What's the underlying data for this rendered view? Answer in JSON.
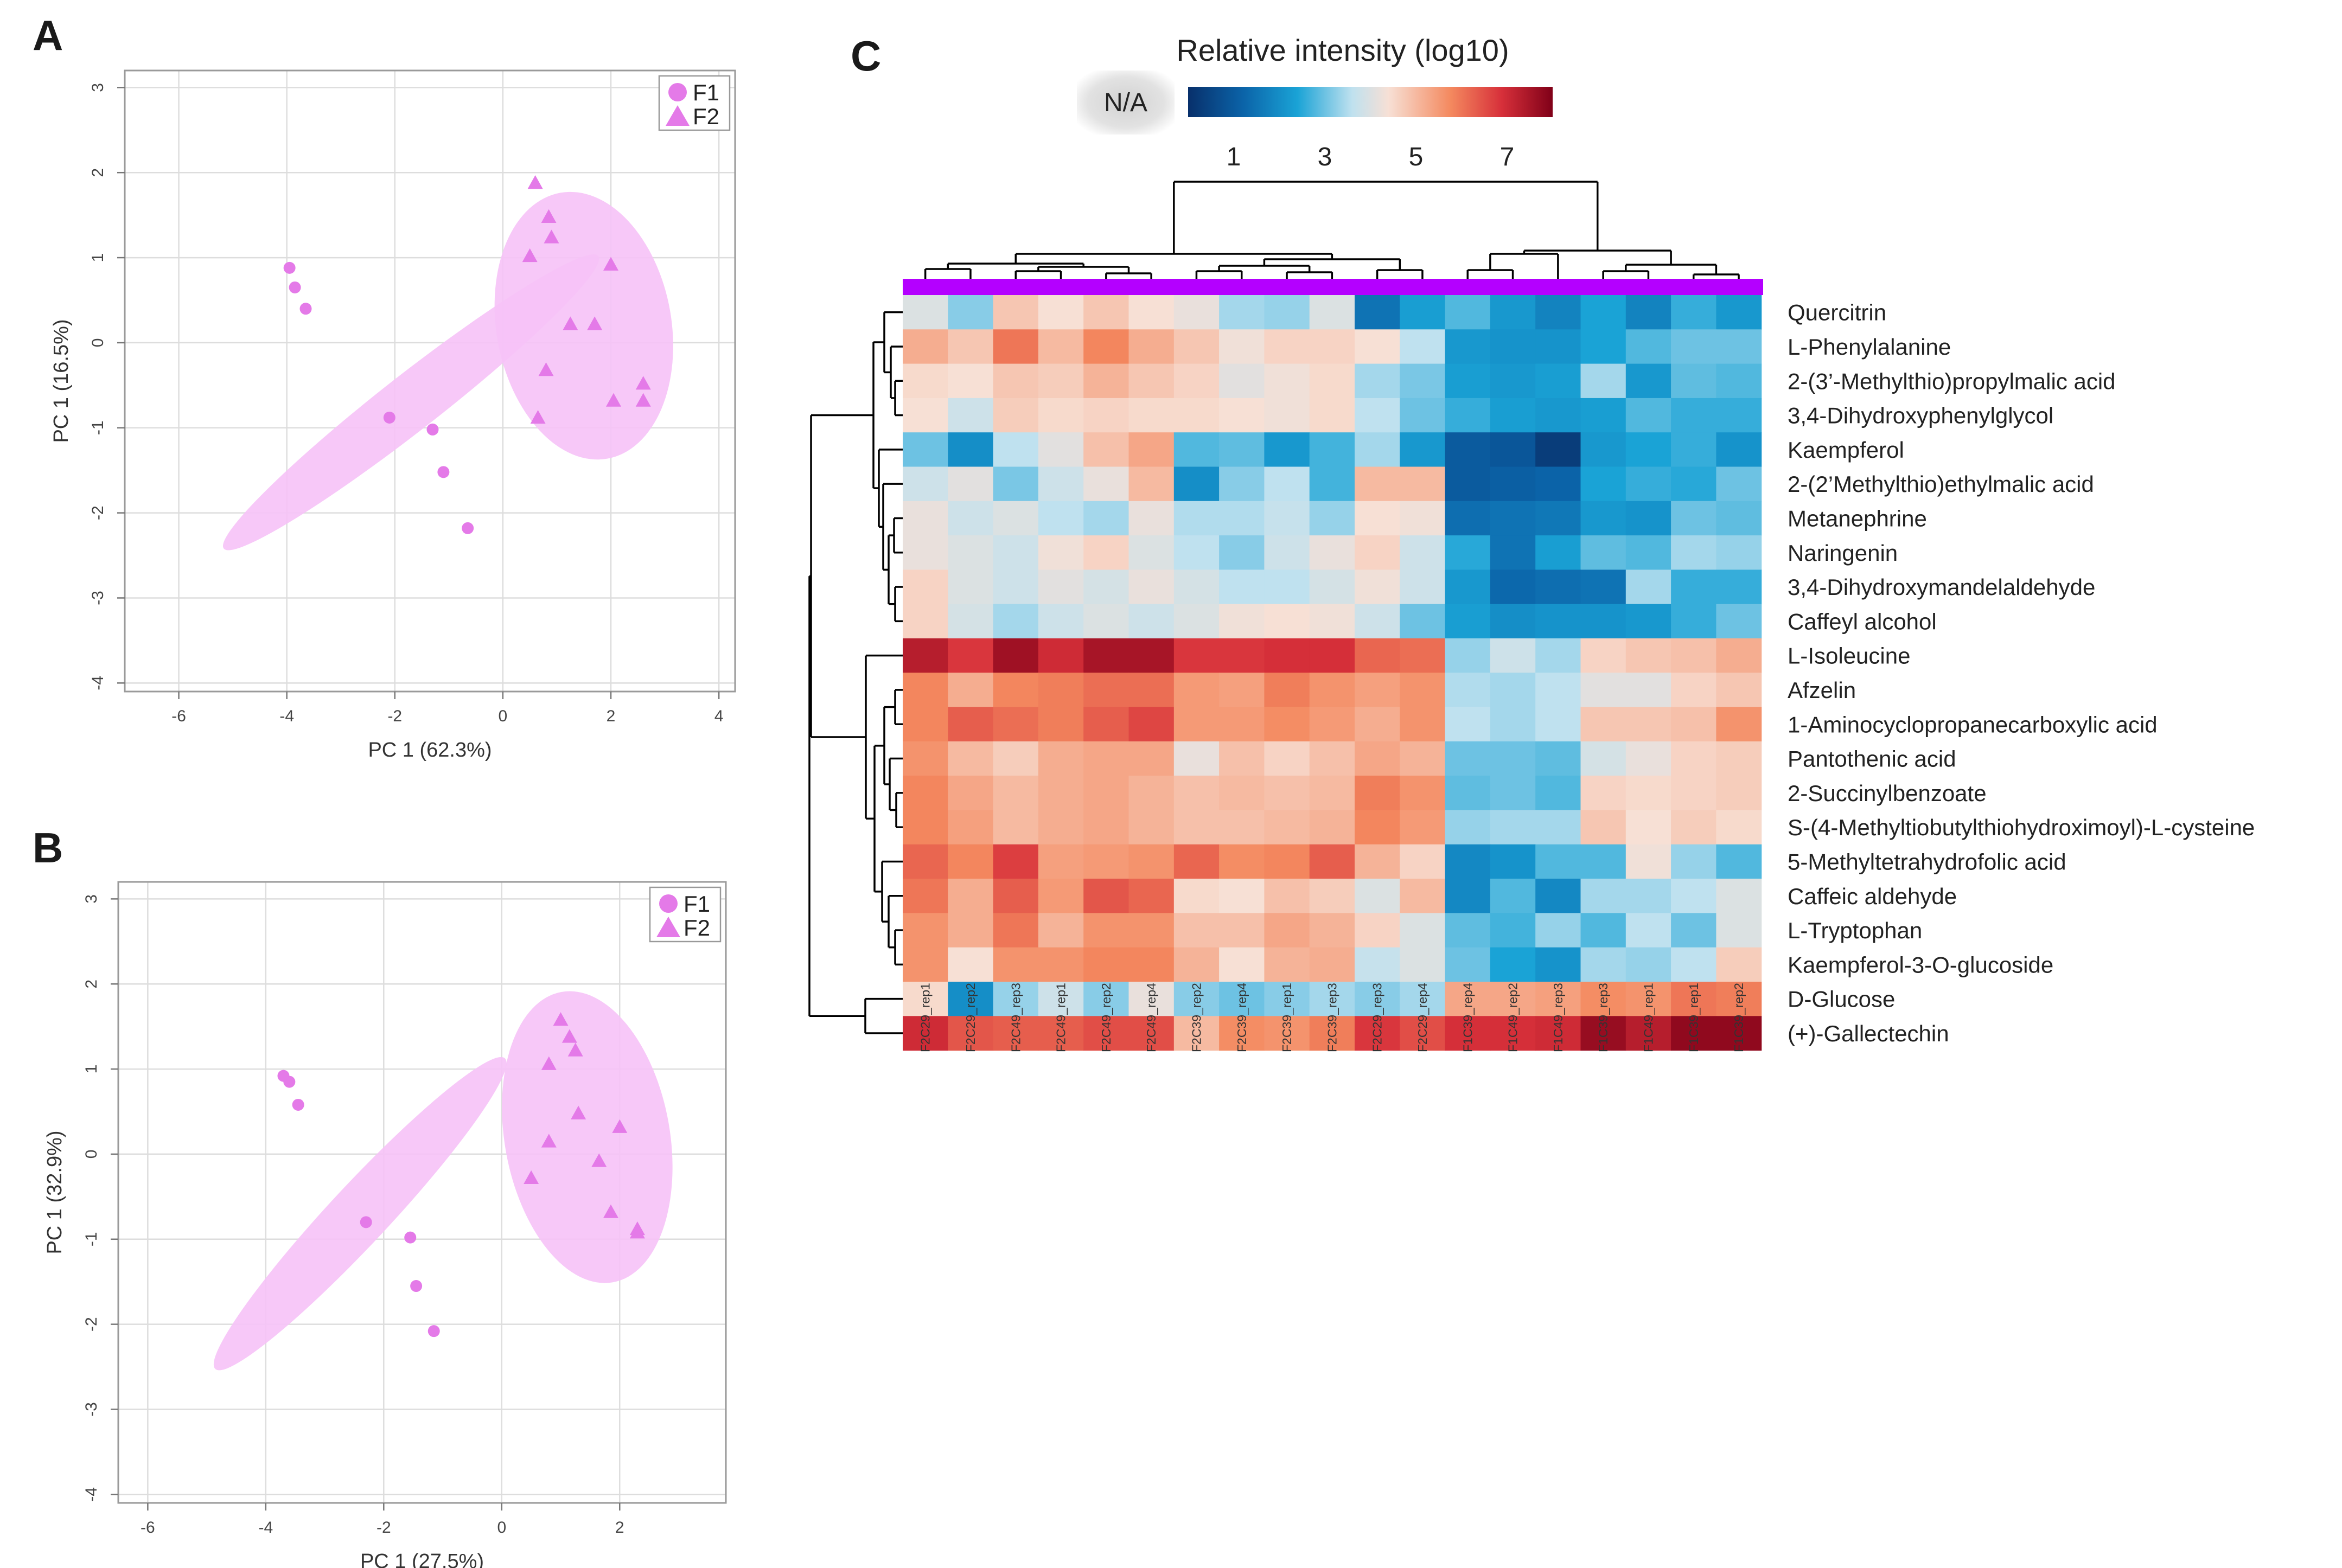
{
  "figure": {
    "panel_labels": [
      "A",
      "B",
      "C"
    ]
  },
  "colors": {
    "marker": "#e47ae8",
    "ellipse_fill": "#f6c2f7",
    "grid": "#dddddd",
    "group_bar": "#b400ff",
    "cmap_low": "#08306b",
    "cmap_mid": "#f4efea",
    "cmap_high": "#800018"
  },
  "chart_data": [
    {
      "panel": "A",
      "type": "scatter",
      "xlabel": "PC 1 (62.3%)",
      "ylabel": "PC 1 (16.5%)",
      "xlim": [
        -7,
        4.3
      ],
      "ylim": [
        -4.1,
        3.2
      ],
      "xticks": [
        "-6",
        "-4",
        "-2",
        "0",
        "2",
        "4"
      ],
      "yticks": [
        "3",
        "2",
        "1",
        "0",
        "-1",
        "-2",
        "-3",
        "-4"
      ],
      "legend": [
        {
          "name": "F1",
          "marker": "circle"
        },
        {
          "name": "F2",
          "marker": "triangle"
        }
      ],
      "series": [
        {
          "name": "F1",
          "marker": "circle",
          "x": [
            -3.95,
            -3.85,
            -3.65,
            -2.1,
            -1.3,
            -1.1,
            -0.65
          ],
          "y": [
            0.88,
            0.65,
            0.4,
            -0.88,
            -1.02,
            -1.52,
            -2.18
          ]
        },
        {
          "name": "F2",
          "marker": "triangle",
          "x": [
            0.6,
            0.85,
            0.9,
            0.5,
            2.0,
            1.25,
            1.7,
            0.8,
            2.6,
            2.05,
            2.6,
            0.65
          ],
          "y": [
            1.88,
            1.48,
            1.24,
            1.02,
            0.92,
            0.22,
            0.22,
            -0.32,
            -0.48,
            -0.68,
            -0.68,
            -0.88
          ]
        }
      ],
      "ellipses": [
        {
          "group": "F1",
          "cx": -1.7,
          "cy": -0.7,
          "rx": 4.4,
          "ry": 0.52,
          "angle_deg": -38
        },
        {
          "group": "F2",
          "cx": 1.5,
          "cy": 0.2,
          "rx": 2.5,
          "ry": 1.62,
          "angle_deg": 80
        }
      ]
    },
    {
      "panel": "B",
      "type": "scatter",
      "xlabel": "PC 1 (27.5%)",
      "ylabel": "PC 1 (32.9%)",
      "xlim": [
        -6.5,
        3.8
      ],
      "ylim": [
        -4.1,
        3.2
      ],
      "xticks": [
        "-6",
        "-4",
        "-2",
        "0",
        "2"
      ],
      "yticks": [
        "3",
        "2",
        "1",
        "0",
        "-1",
        "-2",
        "-3",
        "-4"
      ],
      "legend": [
        {
          "name": "F1",
          "marker": "circle"
        },
        {
          "name": "F2",
          "marker": "triangle"
        }
      ],
      "series": [
        {
          "name": "F1",
          "marker": "circle",
          "x": [
            -3.7,
            -3.6,
            -3.45,
            -2.3,
            -1.55,
            -1.45,
            -1.15
          ],
          "y": [
            0.92,
            0.85,
            0.58,
            -0.8,
            -0.98,
            -1.55,
            -2.08
          ]
        },
        {
          "name": "F2",
          "marker": "triangle",
          "x": [
            1.0,
            1.15,
            1.25,
            0.8,
            1.3,
            2.0,
            0.8,
            1.65,
            0.5,
            1.85,
            2.3,
            2.3
          ],
          "y": [
            1.58,
            1.38,
            1.22,
            1.06,
            0.48,
            0.32,
            0.15,
            -0.08,
            -0.28,
            -0.68,
            -0.88,
            -0.92
          ]
        }
      ],
      "ellipses": [
        {
          "group": "F1",
          "cx": -2.4,
          "cy": -0.7,
          "rx": 3.6,
          "ry": 0.5,
          "angle_deg": -47
        },
        {
          "group": "F2",
          "cx": 1.45,
          "cy": 0.2,
          "rx": 2.5,
          "ry": 1.4,
          "angle_deg": 80
        }
      ]
    },
    {
      "panel": "C",
      "type": "heatmap",
      "title": "Relative intensity (log10)",
      "na_label": "N/A",
      "colorbar_ticks": [
        "1",
        "3",
        "5",
        "7"
      ],
      "colorbar_range": [
        0,
        8
      ],
      "columns": [
        "F2C29_rep1",
        "F2C29_rep2",
        "F2C49_rep3",
        "F2C49_rep1",
        "F2C49_rep2",
        "F2C49_rep4",
        "F2C39_rep2",
        "F2C39_rep4",
        "F2C39_rep1",
        "F2C39_rep3",
        "F2C29_rep3",
        "F2C29_rep4",
        "F1C39_rep4",
        "F1C49_rep2",
        "F1C49_rep3",
        "F1C39_rep3",
        "F1C49_rep1",
        "F1C39_rep1",
        "F1C39_rep2"
      ],
      "rows": [
        "Quercitrin",
        "L-Phenylalanine",
        "2-(3’-Methylthio)propylmalic acid",
        "3,4-Dihydroxyphenylglycol",
        "Kaempferol",
        "2-(2’Methylthio)ethylmalic acid",
        "Metanephrine",
        "Naringenin",
        "3,4-Dihydroxymandelaldehyde",
        "Caffeyl alcohol",
        "L-Isoleucine",
        "Afzelin",
        "1-Aminocyclopropanecarboxylic acid",
        "Pantothenic acid",
        "2-Succinylbenzoate",
        "S-(4-Methyltiobutylthiohydroximoyl)-L-cysteine",
        "5-Methyltetrahydrofolic acid",
        "Caffeic aldehyde",
        "L-Tryptophan",
        "Kaempferol-3-O-glucoside",
        "D-Glucose",
        "(+)-Gallectechin"
      ],
      "values": [
        [
          4.0,
          3.2,
          4.8,
          4.4,
          4.8,
          4.4,
          4.2,
          3.4,
          3.3,
          4.0,
          1.5,
          2.3,
          2.8,
          2.2,
          1.8,
          2.4,
          1.8,
          2.6,
          2.2
        ],
        [
          5.2,
          4.8,
          6.0,
          5.0,
          5.8,
          5.2,
          4.8,
          4.3,
          4.6,
          4.6,
          4.4,
          3.6,
          2.2,
          2.1,
          2.1,
          2.4,
          2.8,
          3.0,
          3.0
        ],
        [
          4.5,
          4.4,
          4.8,
          4.7,
          5.1,
          4.8,
          4.6,
          4.1,
          4.3,
          4.5,
          3.4,
          3.1,
          2.3,
          2.2,
          2.3,
          3.4,
          2.2,
          2.9,
          2.8
        ],
        [
          4.4,
          3.8,
          4.7,
          4.5,
          4.6,
          4.5,
          4.5,
          4.4,
          4.3,
          4.5,
          3.6,
          3.0,
          2.6,
          2.3,
          2.2,
          2.3,
          2.8,
          2.6,
          2.6
        ],
        [
          3.0,
          2.0,
          3.6,
          4.1,
          4.9,
          5.3,
          2.8,
          2.9,
          2.2,
          2.7,
          3.4,
          2.2,
          1.0,
          0.9,
          0.3,
          2.2,
          2.4,
          2.6,
          2.1
        ],
        [
          3.8,
          4.1,
          3.1,
          3.8,
          4.2,
          5.0,
          2.0,
          3.2,
          3.6,
          2.7,
          5.0,
          5.0,
          1.0,
          1.1,
          1.2,
          2.4,
          2.6,
          2.5,
          3.0
        ],
        [
          4.2,
          3.8,
          4.0,
          3.6,
          3.4,
          4.2,
          3.5,
          3.5,
          3.7,
          3.3,
          4.4,
          4.3,
          1.4,
          1.5,
          1.6,
          2.2,
          2.1,
          3.0,
          2.9
        ],
        [
          4.2,
          4.0,
          3.8,
          4.3,
          4.6,
          4.0,
          3.6,
          3.2,
          3.8,
          4.2,
          4.6,
          3.8,
          2.5,
          1.5,
          2.3,
          2.9,
          2.8,
          3.4,
          3.3
        ],
        [
          4.6,
          4.0,
          3.8,
          4.1,
          3.9,
          4.2,
          3.9,
          3.6,
          3.6,
          3.9,
          4.3,
          3.8,
          2.2,
          1.3,
          1.4,
          1.5,
          3.4,
          2.6,
          2.6
        ],
        [
          4.6,
          3.9,
          3.4,
          3.8,
          4.0,
          3.8,
          4.0,
          4.3,
          4.4,
          4.3,
          3.8,
          3.0,
          2.3,
          2.0,
          2.1,
          2.1,
          2.2,
          2.6,
          3.0
        ],
        [
          7.3,
          6.8,
          7.6,
          7.0,
          7.5,
          7.5,
          6.8,
          6.8,
          6.9,
          6.9,
          6.2,
          6.1,
          3.3,
          3.8,
          3.4,
          4.6,
          4.8,
          4.9,
          5.2
        ],
        [
          5.8,
          5.2,
          5.8,
          5.9,
          6.1,
          6.1,
          5.5,
          5.4,
          5.9,
          5.6,
          5.4,
          5.6,
          3.5,
          3.4,
          3.6,
          4.1,
          4.1,
          4.6,
          4.8
        ],
        [
          5.8,
          6.3,
          6.1,
          5.9,
          6.3,
          6.6,
          5.5,
          5.5,
          5.7,
          5.5,
          5.2,
          5.6,
          3.6,
          3.4,
          3.6,
          4.8,
          4.8,
          4.9,
          5.6
        ],
        [
          5.6,
          5.0,
          4.7,
          5.2,
          5.3,
          5.3,
          4.2,
          4.9,
          4.6,
          4.9,
          5.3,
          5.1,
          3.0,
          3.0,
          2.9,
          3.9,
          4.2,
          4.6,
          4.7
        ],
        [
          5.8,
          5.3,
          5.0,
          5.2,
          5.3,
          5.1,
          4.9,
          5.0,
          4.9,
          5.0,
          5.9,
          5.6,
          2.9,
          3.0,
          2.8,
          4.6,
          4.5,
          4.6,
          4.7
        ],
        [
          5.8,
          5.4,
          5.0,
          5.2,
          5.3,
          5.1,
          4.9,
          4.9,
          5.0,
          5.1,
          5.8,
          5.5,
          3.3,
          3.4,
          3.4,
          4.8,
          4.4,
          4.7,
          4.5
        ],
        [
          6.2,
          5.8,
          6.7,
          5.4,
          5.5,
          5.6,
          6.2,
          5.7,
          5.8,
          6.3,
          5.1,
          4.6,
          1.9,
          2.1,
          2.8,
          2.8,
          4.3,
          3.3,
          2.8
        ],
        [
          6.0,
          5.2,
          6.3,
          5.5,
          6.4,
          6.2,
          4.5,
          4.4,
          4.9,
          4.7,
          4.0,
          5.0,
          1.9,
          2.8,
          1.9,
          3.4,
          3.4,
          3.6,
          4.0
        ],
        [
          5.6,
          5.2,
          6.0,
          5.1,
          5.6,
          5.6,
          4.9,
          4.9,
          5.3,
          5.1,
          4.6,
          4.0,
          2.9,
          2.7,
          3.3,
          2.8,
          3.6,
          3.0,
          4.0
        ],
        [
          5.6,
          4.4,
          5.6,
          5.6,
          5.8,
          5.8,
          5.1,
          4.4,
          5.1,
          5.2,
          3.7,
          4.0,
          3.0,
          2.4,
          2.1,
          3.4,
          3.3,
          3.6,
          4.7
        ],
        [
          4.5,
          2.0,
          3.3,
          3.8,
          3.2,
          4.2,
          3.2,
          3.0,
          3.2,
          3.4,
          3.2,
          3.4,
          5.3,
          5.3,
          5.4,
          5.7,
          5.6,
          6.0,
          5.9
        ],
        [
          7.0,
          6.4,
          6.3,
          6.3,
          6.5,
          6.5,
          5.0,
          5.7,
          5.6,
          5.9,
          6.8,
          6.5,
          6.9,
          6.9,
          7.0,
          7.7,
          7.3,
          7.8,
          7.8
        ]
      ]
    }
  ]
}
